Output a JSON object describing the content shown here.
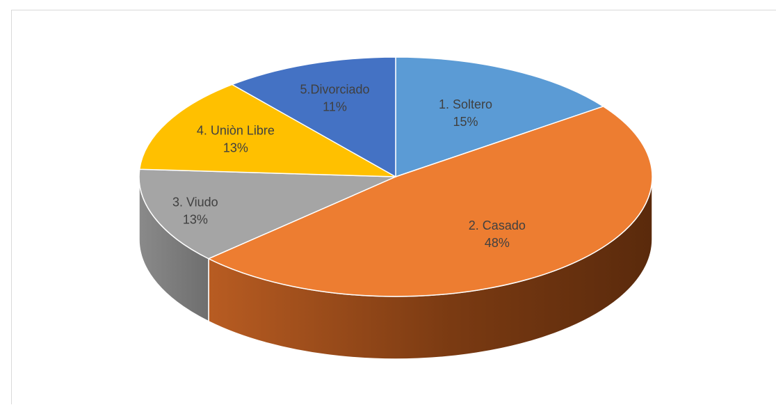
{
  "chart_data": {
    "type": "pie",
    "style": "3d",
    "title": "",
    "legend": "none",
    "slices": [
      {
        "label": "1. Soltero",
        "percent_label": "15%",
        "value": 15,
        "color": "#5B9BD5"
      },
      {
        "label": "2. Casado",
        "percent_label": "48%",
        "value": 48,
        "color": "#ED7D31"
      },
      {
        "label": "3. Viudo",
        "percent_label": "13%",
        "value": 13,
        "color": "#A5A5A5"
      },
      {
        "label": "4. Uniòn Libre",
        "percent_label": "13%",
        "value": 13,
        "color": "#FFC000"
      },
      {
        "label": "5.Divorciado",
        "percent_label": "11%",
        "value": 11,
        "color": "#4472C4"
      }
    ]
  }
}
